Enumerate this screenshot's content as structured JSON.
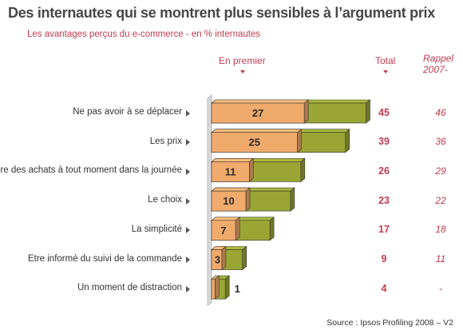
{
  "title": "Des internautes qui se montrent plus sensibles à l’argument prix",
  "subtitle": "Les avantages perçus du e-commerce - en % internautes",
  "headers": {
    "first": "En premier",
    "total": "Total",
    "recall_line1": "Rappel",
    "recall_line2": "2007-"
  },
  "source": "Source : Ipsos Profiling 2008 – V2",
  "colors": {
    "first": "#f0aa6b",
    "total": "#9aa634",
    "accent": "#c23b4f",
    "wall": "#d9d9d9"
  },
  "chart_data": {
    "type": "bar",
    "orientation": "horizontal",
    "stacked": true,
    "categories": [
      "Ne pas avoir à se déplacer",
      "Les prix",
      "Faire des achats à tout moment dans la journée",
      "Le choix",
      "La simplicité",
      "Etre informé du suivi de la commande",
      "Un moment de distraction"
    ],
    "series": [
      {
        "name": "En premier",
        "values": [
          27,
          25,
          11,
          10,
          7,
          3,
          1
        ]
      },
      {
        "name": "Total",
        "values": [
          45,
          39,
          26,
          23,
          17,
          9,
          4
        ]
      }
    ],
    "recall_2007": [
      "46",
      "36",
      "29",
      "22",
      "18",
      "11",
      "-"
    ]
  }
}
